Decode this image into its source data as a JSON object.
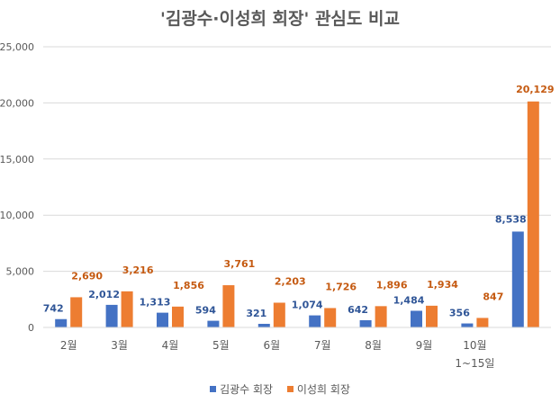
{
  "chart_data": {
    "type": "bar",
    "title": "'김광수·이성희 회장' 관심도 비교",
    "categories": [
      "2월",
      "3월",
      "4월",
      "5월",
      "6월",
      "7월",
      "8월",
      "9월",
      "10월\n1~15일",
      ""
    ],
    "series": [
      {
        "name": "김광수 회장",
        "color": "#4472C4",
        "label_color": "#2F5597",
        "values": [
          742,
          2012,
          1313,
          594,
          321,
          1074,
          642,
          1484,
          356,
          8538
        ]
      },
      {
        "name": "이성희 회장",
        "color": "#ED7D31",
        "label_color": "#C55A11",
        "values": [
          2690,
          3216,
          1856,
          3761,
          2203,
          1726,
          1896,
          1934,
          847,
          20129
        ]
      }
    ],
    "ylim": [
      0,
      25000
    ],
    "yticks": [
      "0",
      "5,000",
      "10,000",
      "15,000",
      "20,000",
      "25,000"
    ],
    "grid": true,
    "legend": "bottom",
    "xlabel": "",
    "ylabel": ""
  }
}
